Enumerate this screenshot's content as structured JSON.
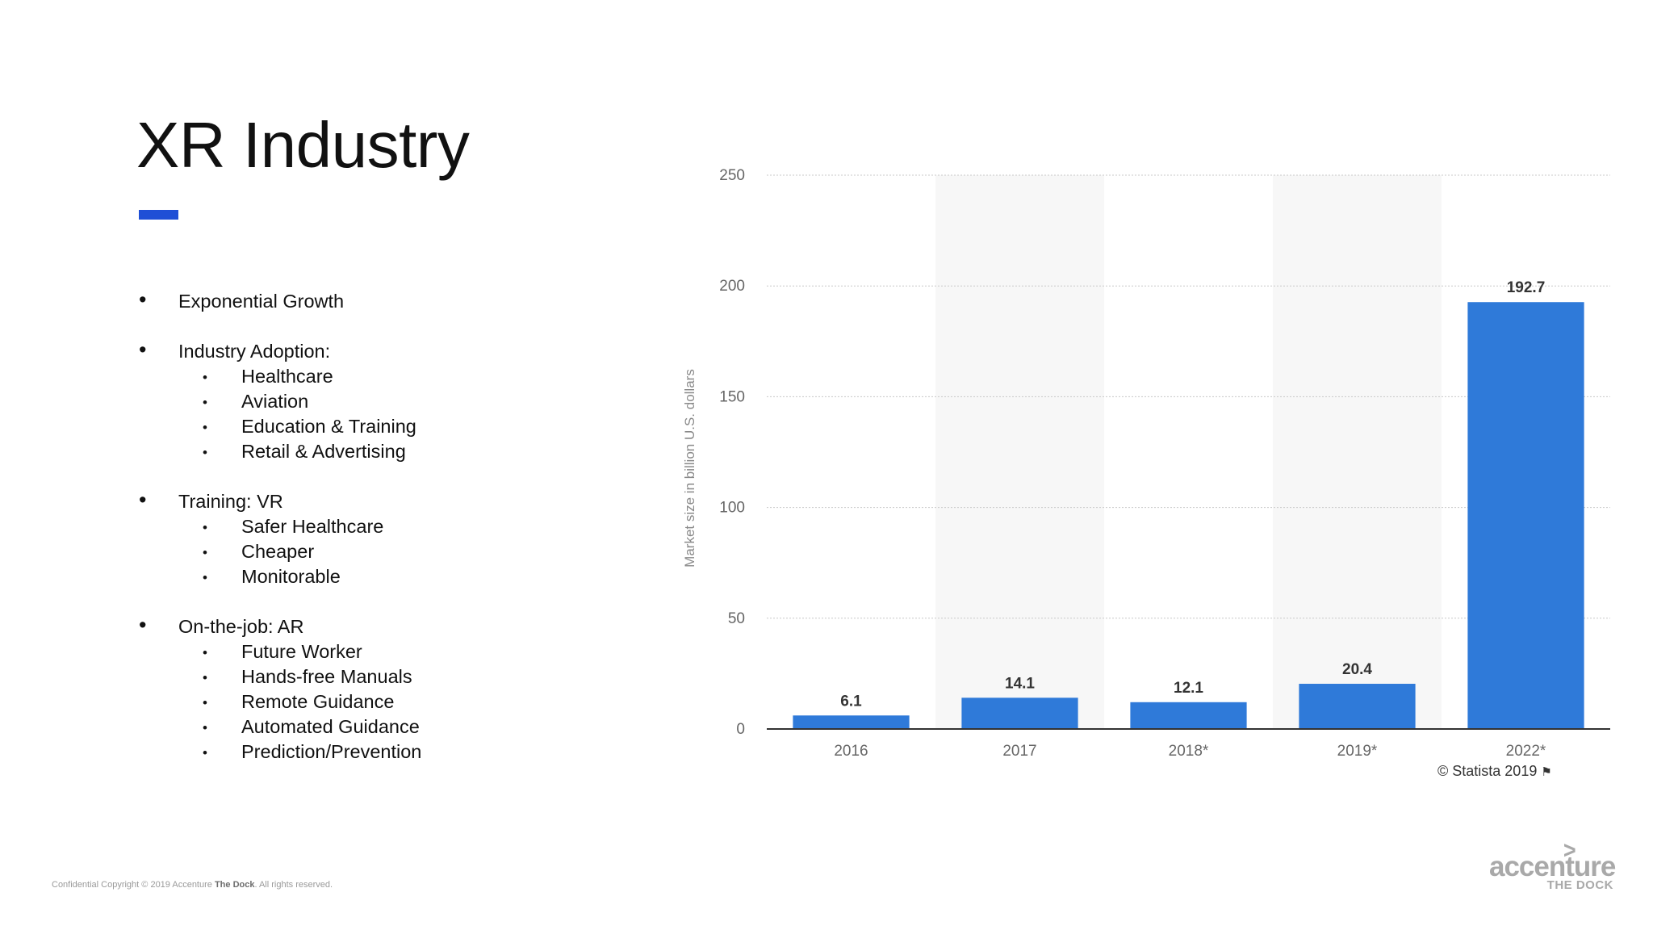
{
  "slide": {
    "title": "XR Industry",
    "accent_color": "#1f4fd6"
  },
  "bullets": [
    {
      "level": 1,
      "text": "Exponential Growth"
    },
    {
      "level": 0
    },
    {
      "level": 1,
      "text": "Industry Adoption:"
    },
    {
      "level": 2,
      "text": "Healthcare"
    },
    {
      "level": 2,
      "text": "Aviation"
    },
    {
      "level": 2,
      "text": "Education & Training"
    },
    {
      "level": 2,
      "text": "Retail & Advertising"
    },
    {
      "level": 0
    },
    {
      "level": 1,
      "text": "Training: VR"
    },
    {
      "level": 2,
      "text": "Safer Healthcare"
    },
    {
      "level": 2,
      "text": "Cheaper"
    },
    {
      "level": 2,
      "text": "Monitorable"
    },
    {
      "level": 0
    },
    {
      "level": 1,
      "text": "On-the-job: AR"
    },
    {
      "level": 2,
      "text": "Future Worker"
    },
    {
      "level": 2,
      "text": "Hands-free Manuals"
    },
    {
      "level": 2,
      "text": "Remote Guidance"
    },
    {
      "level": 2,
      "text": "Automated  Guidance"
    },
    {
      "level": 2,
      "text": "Prediction/Prevention"
    }
  ],
  "chart_data": {
    "type": "bar",
    "title": "",
    "xlabel": "",
    "ylabel": "Market size in billion U.S. dollars",
    "categories": [
      "2016",
      "2017",
      "2018*",
      "2019*",
      "2022*"
    ],
    "values": [
      6.1,
      14.1,
      12.1,
      20.4,
      192.7
    ],
    "data_labels": [
      "6.1",
      "14.1",
      "12.1",
      "20.4",
      "192.7"
    ],
    "ylim": [
      0,
      250
    ],
    "yticks": [
      0,
      50,
      100,
      150,
      200,
      250
    ],
    "grid": true,
    "bar_color": "#2f7ad9",
    "band_color": "#f7f7f7",
    "axis_text_color": "#666666",
    "label_color": "#333333"
  },
  "credit": {
    "text": "© Statista 2019",
    "icon": "flag-icon"
  },
  "footer": {
    "prefix": "Confidential Copyright © 2019 Accenture ",
    "bold": "The Dock",
    "suffix": ". All rights reserved."
  },
  "logo": {
    "word": "accenture",
    "sub": "THE DOCK",
    "chevron": ">",
    "color": "#a9a9a9"
  }
}
